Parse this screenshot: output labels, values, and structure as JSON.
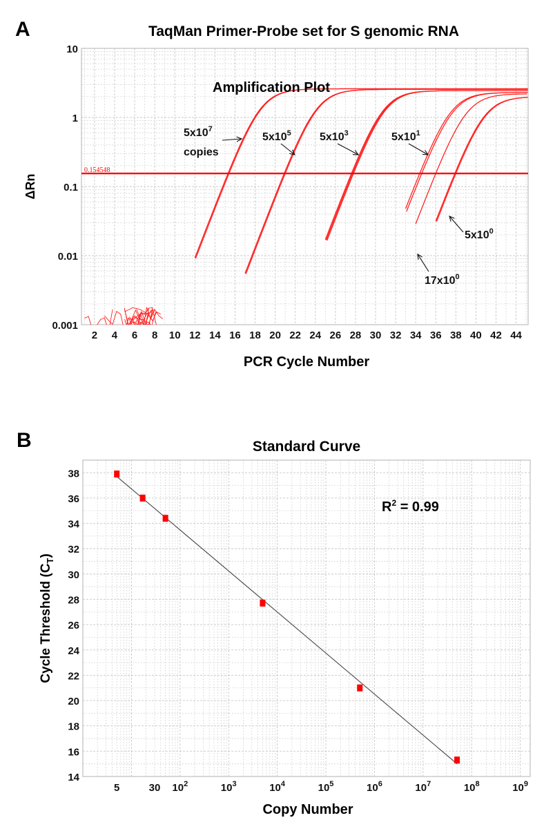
{
  "chart_data": [
    {
      "panel": "A",
      "type": "line",
      "title": "TaqMan Primer-Probe set for S genomic RNA",
      "subtitle": "Amplification Plot",
      "xlabel": "PCR Cycle Number",
      "ylabel": "ΔRn",
      "yscale": "log",
      "xlim": [
        0.7,
        45.2
      ],
      "ylim": [
        0.001,
        10
      ],
      "x_ticks": [
        2,
        4,
        6,
        8,
        10,
        12,
        14,
        16,
        18,
        20,
        22,
        24,
        26,
        28,
        30,
        32,
        34,
        36,
        38,
        40,
        42,
        44
      ],
      "y_ticks": [
        {
          "value": 10,
          "label": "10"
        },
        {
          "value": 1,
          "label": "1"
        },
        {
          "value": 0.1,
          "label": "0.1"
        },
        {
          "value": 0.01,
          "label": "0.01"
        },
        {
          "value": 0.001,
          "label": "0.001"
        }
      ],
      "grid": true,
      "threshold": {
        "value": 0.154548,
        "label": "0.154548",
        "color": "#ff0000"
      },
      "line_color": "#ff2020",
      "series": [
        {
          "name": "5x10^7 copies",
          "label_base": "5x10",
          "label_exp": "7",
          "label_extra": "copies",
          "start_cycle": 12,
          "ct": [
            15.3,
            15.4
          ],
          "plateau": 2.6
        },
        {
          "name": "5x10^5",
          "label_base": "5x10",
          "label_exp": "5",
          "start_cycle": 17,
          "ct": [
            20.9,
            21.0
          ],
          "plateau": 2.55
        },
        {
          "name": "5x10^3",
          "label_base": "5x10",
          "label_exp": "3",
          "start_cycle": 25,
          "ct": [
            27.6,
            27.7,
            27.8
          ],
          "plateau": 2.45
        },
        {
          "name": "5x10^1",
          "label_base": "5x10",
          "label_exp": "1",
          "start_cycle": 33,
          "ct": [
            34.4,
            34.6
          ],
          "plateau": 2.3
        },
        {
          "name": "17x10^0",
          "label_base": "17x10",
          "label_exp": "0",
          "start_cycle": 34,
          "ct": [
            36.0
          ],
          "plateau": 2.2
        },
        {
          "name": "5x10^0",
          "label_base": "5x10",
          "label_exp": "0",
          "start_cycle": 36,
          "ct": [
            37.9,
            38.0
          ],
          "plateau": 2.0
        }
      ]
    },
    {
      "panel": "B",
      "type": "scatter",
      "title": "Standard Curve",
      "xlabel": "Copy Number",
      "ylabel_base": "Cycle Threshold (C",
      "ylabel_sub": "T",
      "ylabel_end": ")",
      "xscale": "log",
      "xlim": [
        1,
        1600000000
      ],
      "ylim": [
        14,
        39
      ],
      "x_ticks": [
        {
          "value": 5,
          "base": "5",
          "exp": ""
        },
        {
          "value": 30,
          "base": "30",
          "exp": ""
        },
        {
          "value": 100,
          "base": "10",
          "exp": "2"
        },
        {
          "value": 1000,
          "base": "10",
          "exp": "3"
        },
        {
          "value": 10000,
          "base": "10",
          "exp": "4"
        },
        {
          "value": 100000,
          "base": "10",
          "exp": "5"
        },
        {
          "value": 1000000,
          "base": "10",
          "exp": "6"
        },
        {
          "value": 10000000,
          "base": "10",
          "exp": "7"
        },
        {
          "value": 100000000,
          "base": "10",
          "exp": "8"
        },
        {
          "value": 1000000000,
          "base": "10",
          "exp": "9"
        }
      ],
      "y_ticks": [
        14,
        16,
        18,
        20,
        22,
        24,
        26,
        28,
        30,
        32,
        34,
        36,
        38
      ],
      "grid": true,
      "points": [
        {
          "x": 5,
          "y": 37.9
        },
        {
          "x": 17,
          "y": 36.0
        },
        {
          "x": 50,
          "y": 34.4
        },
        {
          "x": 5000,
          "y": 27.7
        },
        {
          "x": 500000,
          "y": 21.0
        },
        {
          "x": 50000000,
          "y": 15.3
        }
      ],
      "fit": {
        "x": [
          5,
          50000000
        ],
        "y": [
          37.7,
          15.0
        ],
        "slope_per_decade": -3.24
      },
      "r2_base": "R",
      "r2_exp": "2",
      "r2_text": " = 0.99",
      "point_color": "#ff0000",
      "line_color": "#444444"
    }
  ]
}
